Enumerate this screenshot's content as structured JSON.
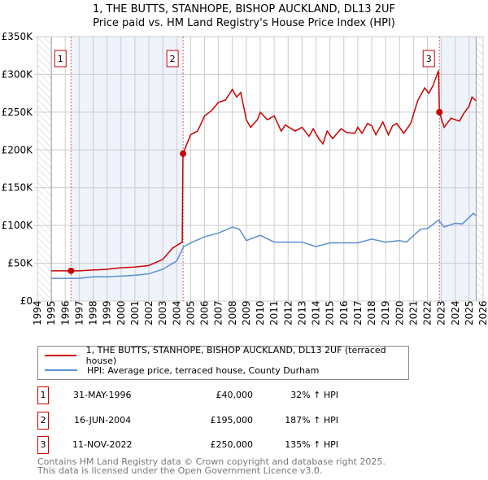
{
  "title": "1, THE BUTTS, STANHOPE, BISHOP AUCKLAND, DL13 2UF",
  "subtitle": "Price paid vs. HM Land Registry's House Price Index (HPI)",
  "chart_data": {
    "type": "line",
    "title": "1, THE BUTTS, STANHOPE, BISHOP AUCKLAND, DL13 2UF",
    "subtitle": "Price paid vs. HM Land Registry's House Price Index (HPI)",
    "xlim": [
      1994,
      2026
    ],
    "ylim": [
      0,
      350000
    ],
    "x_ticks": [
      "1994",
      "1995",
      "1996",
      "1997",
      "1998",
      "1999",
      "2000",
      "2001",
      "2002",
      "2003",
      "2004",
      "2005",
      "2006",
      "2007",
      "2008",
      "2009",
      "2010",
      "2011",
      "2012",
      "2013",
      "2014",
      "2015",
      "2016",
      "2017",
      "2018",
      "2019",
      "2020",
      "2021",
      "2022",
      "2023",
      "2024",
      "2025",
      "2026"
    ],
    "y_ticks": [
      {
        "v": 0,
        "label": "£0"
      },
      {
        "v": 50000,
        "label": "£50K"
      },
      {
        "v": 100000,
        "label": "£100K"
      },
      {
        "v": 150000,
        "label": "£150K"
      },
      {
        "v": 200000,
        "label": "£200K"
      },
      {
        "v": 250000,
        "label": "£250K"
      },
      {
        "v": 300000,
        "label": "£300K"
      },
      {
        "v": 350000,
        "label": "£350K"
      }
    ],
    "grid": true,
    "series": [
      {
        "name": "1, THE BUTTS, STANHOPE, BISHOP AUCKLAND, DL13 2UF (terraced house)",
        "color": "#cc0000",
        "x": [
          1995,
          1996.4,
          1997,
          1998,
          1999,
          2000,
          2001,
          2002,
          2003,
          2003.7,
          2004.4,
          2004.45,
          2005,
          2005.5,
          2006,
          2006.5,
          2007,
          2007.5,
          2008,
          2008.3,
          2008.6,
          2009,
          2009.3,
          2009.8,
          2010,
          2010.5,
          2011,
          2011.5,
          2011.8,
          2012.5,
          2013,
          2013.5,
          2013.8,
          2014.2,
          2014.5,
          2014.8,
          2015.2,
          2015.8,
          2016.2,
          2016.8,
          2017,
          2017.3,
          2017.7,
          2018,
          2018.3,
          2018.8,
          2019.2,
          2019.5,
          2019.8,
          2020.3,
          2020.8,
          2021.3,
          2021.8,
          2022.1,
          2022.4,
          2022.8,
          2022.86,
          2023.2,
          2023.7,
          2024.3,
          2024.6,
          2025,
          2025.2,
          2025.5
        ],
        "y": [
          40000,
          40000,
          40000,
          41000,
          42000,
          44000,
          45000,
          47000,
          55000,
          70000,
          78000,
          195000,
          220000,
          225000,
          245000,
          252000,
          263000,
          266000,
          280000,
          270000,
          276000,
          240000,
          230000,
          240000,
          250000,
          240000,
          245000,
          225000,
          233000,
          225000,
          230000,
          218000,
          228000,
          215000,
          208000,
          225000,
          215000,
          228000,
          223000,
          222000,
          230000,
          222000,
          235000,
          232000,
          220000,
          237000,
          220000,
          232000,
          235000,
          222000,
          235000,
          265000,
          282000,
          275000,
          285000,
          305000,
          250000,
          230000,
          242000,
          238000,
          248000,
          258000,
          270000,
          265000
        ]
      },
      {
        "name": "HPI: Average price, terraced house, County Durham",
        "color": "#5b8fd4",
        "x": [
          1995,
          1997,
          1998,
          1999,
          2000,
          2001,
          2002,
          2003,
          2004,
          2004.5,
          2005,
          2006,
          2007,
          2008,
          2008.5,
          2009,
          2010,
          2011,
          2012,
          2013,
          2014,
          2015,
          2016,
          2017,
          2018,
          2019,
          2020,
          2020.5,
          2021.5,
          2022,
          2022.8,
          2023.2,
          2024,
          2024.5,
          2025.3,
          2025.5
        ],
        "y": [
          30000,
          30000,
          32000,
          32000,
          33000,
          34000,
          36000,
          42000,
          53000,
          72000,
          77000,
          85000,
          90000,
          98000,
          95000,
          80000,
          87000,
          78000,
          78000,
          78000,
          72000,
          77000,
          77000,
          77000,
          82000,
          78000,
          80000,
          78000,
          95000,
          96000,
          107000,
          98000,
          103000,
          102000,
          116000,
          113000
        ]
      }
    ],
    "sales": [
      {
        "id": "1",
        "x": 1996.41,
        "y": 40000
      },
      {
        "id": "2",
        "x": 2004.46,
        "y": 195000
      },
      {
        "id": "3",
        "x": 2022.86,
        "y": 250000
      }
    ],
    "legend_position": "bottom"
  },
  "legend": [
    {
      "label": "1, THE BUTTS, STANHOPE, BISHOP AUCKLAND, DL13 2UF (terraced house)",
      "color": "#cc0000"
    },
    {
      "label": "HPI: Average price, terraced house, County Durham",
      "color": "#5b8fd4"
    }
  ],
  "transactions": [
    {
      "id": "1",
      "date": "31-MAY-1996",
      "price": "£40,000",
      "hpi": "32% ↑ HPI"
    },
    {
      "id": "2",
      "date": "16-JUN-2004",
      "price": "£195,000",
      "hpi": "187% ↑ HPI"
    },
    {
      "id": "3",
      "date": "11-NOV-2022",
      "price": "£250,000",
      "hpi": "135% ↑ HPI"
    }
  ],
  "footer": [
    "Contains HM Land Registry data © Crown copyright and database right 2025.",
    "This data is licensed under the Open Government Licence v3.0."
  ]
}
